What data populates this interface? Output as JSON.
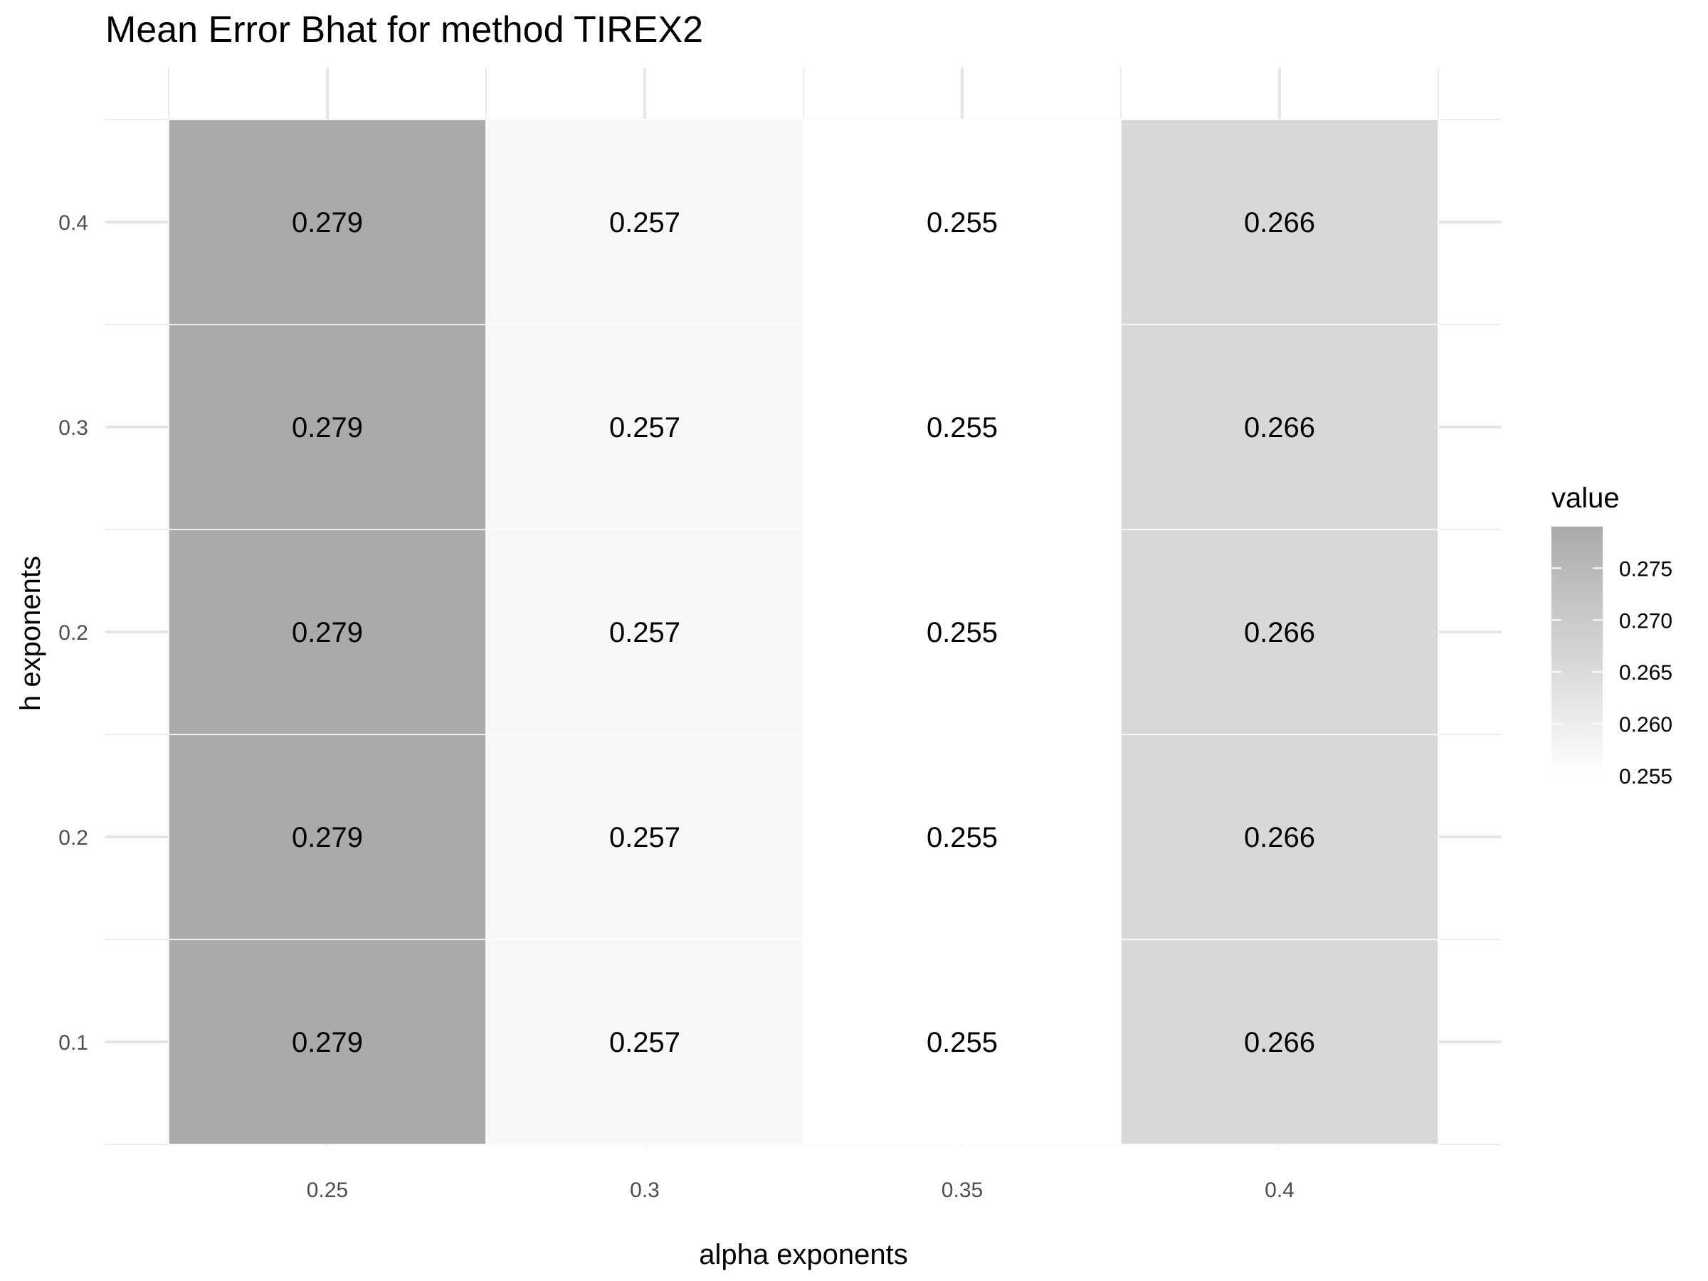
{
  "chart_data": {
    "type": "heatmap",
    "title": "Mean Error Bhat for method TIREX2",
    "xlabel": "alpha exponents",
    "ylabel": "h exponents",
    "x_categories": [
      "0.25",
      "0.3",
      "0.35",
      "0.4"
    ],
    "y_categories": [
      "0.1",
      "0.2",
      "0.2",
      "0.3",
      "0.4"
    ],
    "values": [
      [
        0.279,
        0.257,
        0.255,
        0.266
      ],
      [
        0.279,
        0.257,
        0.255,
        0.266
      ],
      [
        0.279,
        0.257,
        0.255,
        0.266
      ],
      [
        0.279,
        0.257,
        0.255,
        0.266
      ],
      [
        0.279,
        0.257,
        0.255,
        0.266
      ]
    ],
    "value_labels": [
      [
        "0.279",
        "0.257",
        "0.255",
        "0.266"
      ],
      [
        "0.279",
        "0.257",
        "0.255",
        "0.266"
      ],
      [
        "0.279",
        "0.257",
        "0.255",
        "0.266"
      ],
      [
        "0.279",
        "0.257",
        "0.255",
        "0.266"
      ],
      [
        "0.279",
        "0.257",
        "0.255",
        "0.266"
      ]
    ],
    "legend": {
      "title": "value",
      "position": "right",
      "ticks": [
        "0.275",
        "0.270",
        "0.265",
        "0.260",
        "0.255"
      ],
      "tick_values": [
        0.275,
        0.27,
        0.265,
        0.26,
        0.255
      ],
      "range": [
        0.255,
        0.279
      ],
      "low_color": "#ffffff",
      "high_color": "#aaaaaa"
    },
    "grid": true
  }
}
